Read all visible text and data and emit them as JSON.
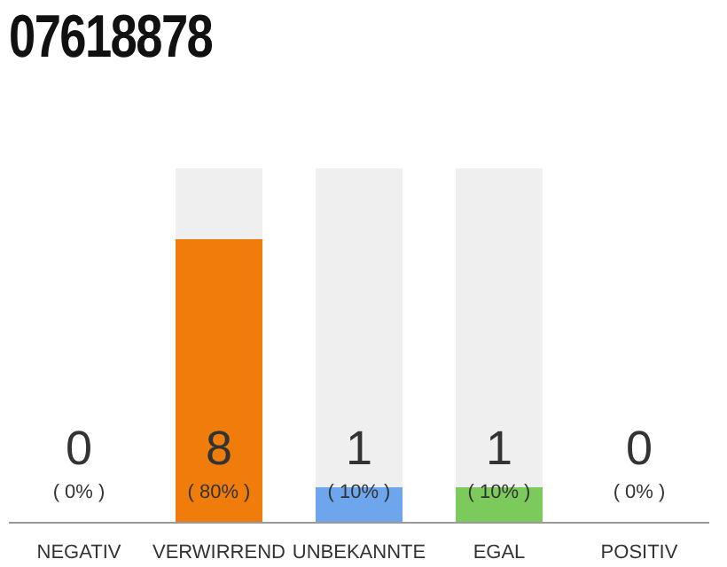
{
  "chart_data": {
    "type": "bar",
    "title": "07618878",
    "categories": [
      "NEGATIV",
      "VERWIRREND",
      "UNBEKANNTE",
      "EGAL",
      "POSITIV"
    ],
    "values": [
      0,
      80,
      10,
      10,
      0
    ],
    "colors": [
      "#8c8c8c",
      "#f07c0c",
      "#6ea6ee",
      "#7cca5c",
      "#8c8c8c"
    ],
    "value_labels": [
      "( 0% )",
      "( 80% )",
      "( 10% )",
      "( 10% )",
      "( 0% )"
    ],
    "annotations": [
      "0",
      "8",
      "1",
      "1",
      "0"
    ],
    "ylim": [
      0,
      100
    ],
    "grid": false,
    "legend": false
  }
}
